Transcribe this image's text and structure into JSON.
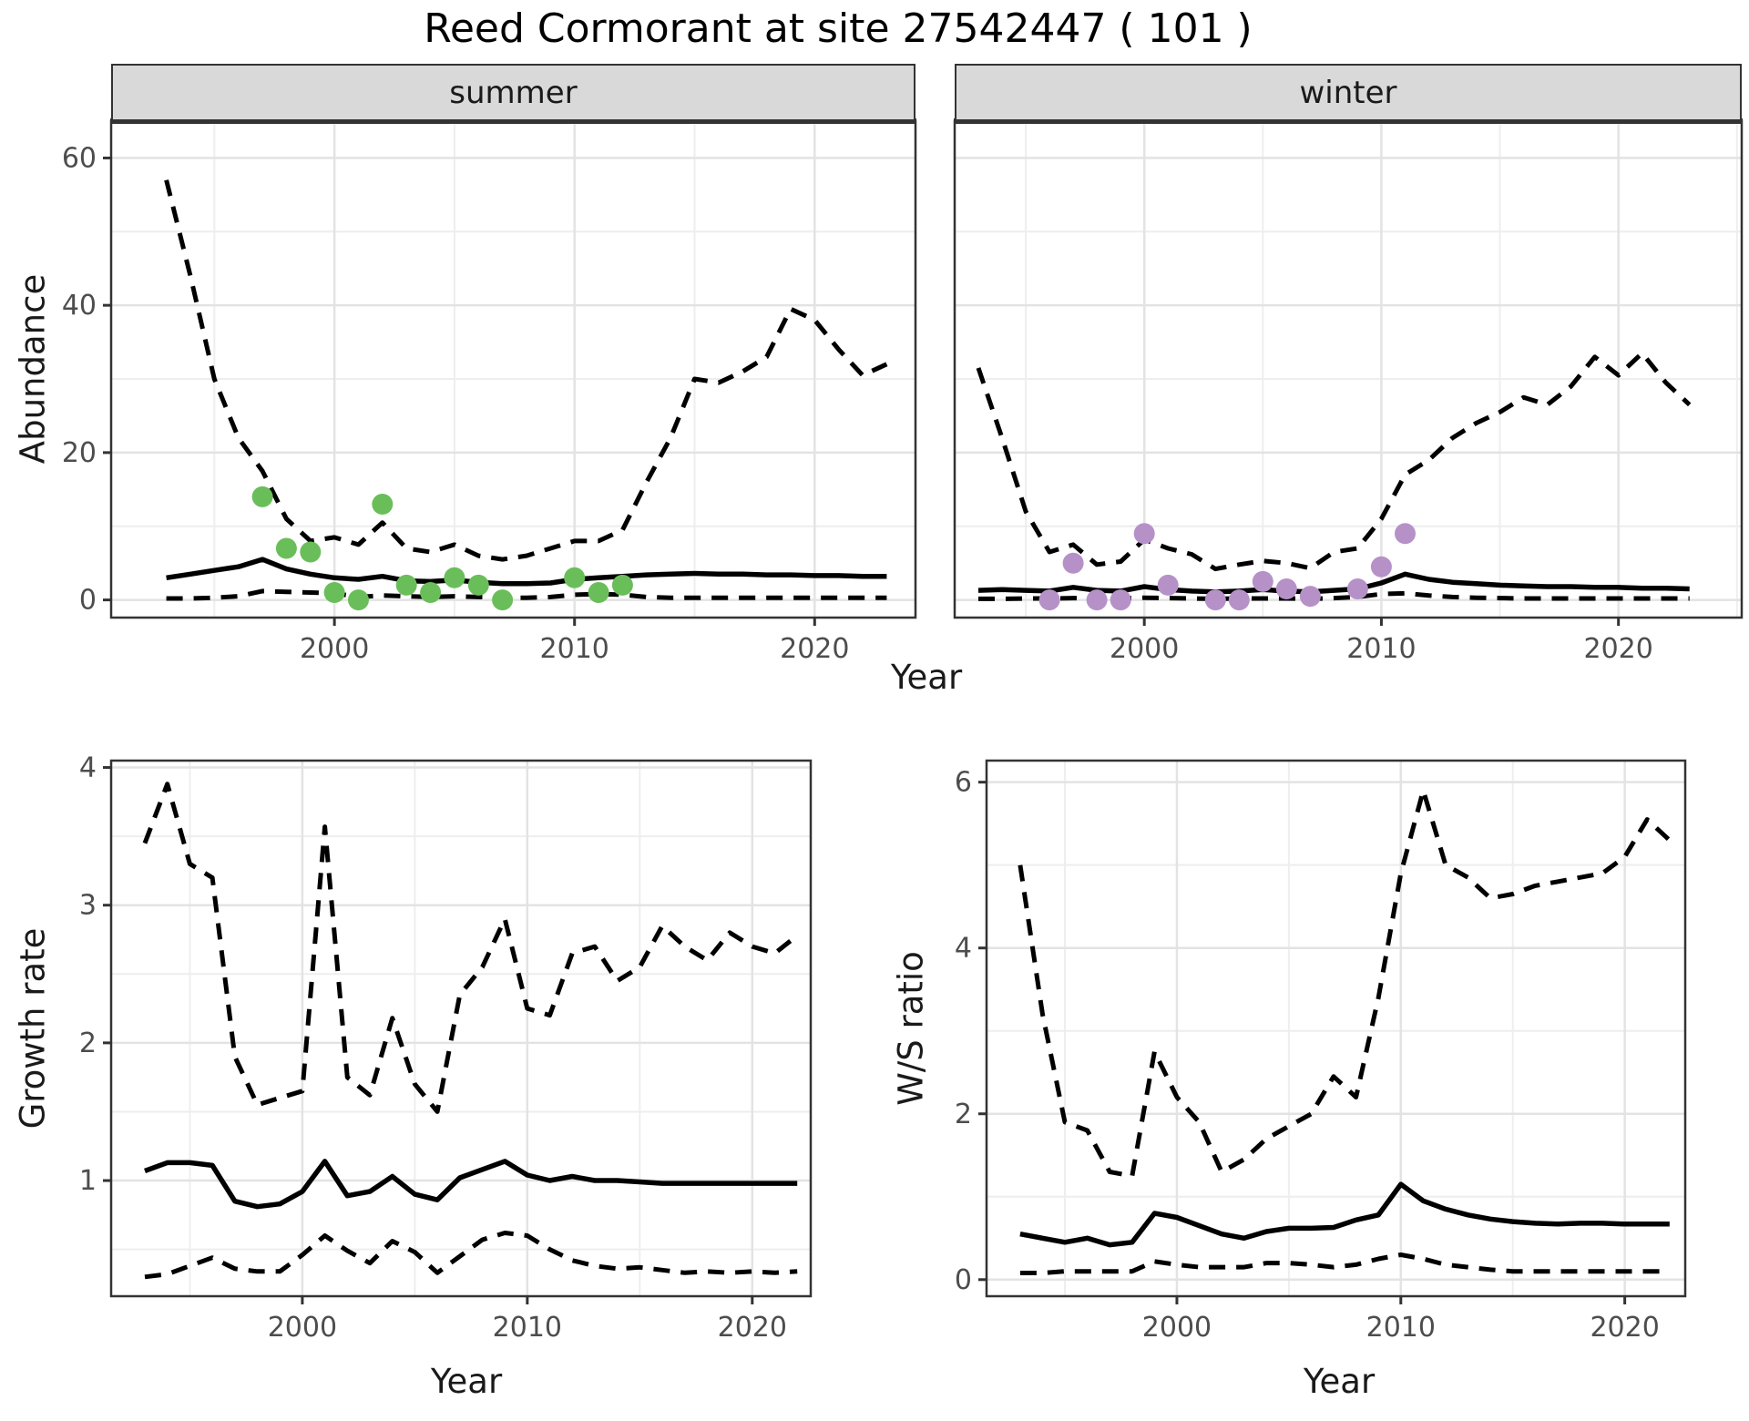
{
  "title": "Reed Cormorant at site 27542447 ( 101 )",
  "axes": {
    "top_x": "Year",
    "top_y": "Abundance",
    "bl_x": "Year",
    "bl_y": "Growth rate",
    "br_x": "Year",
    "br_y": "W/S ratio"
  },
  "colors": {
    "summer_points": "#6abe5a",
    "winter_points": "#b691c8",
    "line": "#000000",
    "strip_bg": "#d9d9d9",
    "panel_border": "#333333",
    "grid_major": "#e3e3e3",
    "grid_minor": "#eeeeee",
    "axis_text": "#4d4d4d"
  },
  "chart_data": [
    {
      "id": "abundance_summer",
      "type": "line",
      "facet_label": "summer",
      "xlabel": "Year",
      "ylabel": "Abundance",
      "xlim": [
        1990.7,
        2024.2
      ],
      "ylim": [
        -2.4,
        65
      ],
      "xticks": [
        2000,
        2010,
        2020
      ],
      "xticks_minor": [
        1995,
        2005,
        2015,
        2025
      ],
      "yticks": [
        0,
        20,
        40,
        60
      ],
      "yticks_minor": [
        10,
        30,
        50
      ],
      "x": [
        1993,
        1994,
        1995,
        1996,
        1997,
        1998,
        1999,
        2000,
        2001,
        2002,
        2003,
        2004,
        2005,
        2006,
        2007,
        2008,
        2009,
        2010,
        2011,
        2012,
        2013,
        2014,
        2015,
        2016,
        2017,
        2018,
        2019,
        2020,
        2021,
        2022,
        2023
      ],
      "series": [
        {
          "name": "upper-ci",
          "style": "dashed",
          "values": [
            57,
            44,
            30,
            22,
            17.5,
            11,
            8,
            8.5,
            7.5,
            10.5,
            7,
            6.5,
            7.5,
            6,
            5.5,
            6,
            7,
            8,
            8,
            9.5,
            16,
            22,
            30,
            29.5,
            31,
            33,
            39.5,
            38,
            34,
            30.5,
            32
          ]
        },
        {
          "name": "median",
          "style": "solid",
          "values": [
            3,
            3.5,
            4,
            4.5,
            5.5,
            4.2,
            3.5,
            3,
            2.8,
            3.2,
            2.6,
            2.5,
            2.7,
            2.4,
            2.2,
            2.2,
            2.3,
            2.8,
            3,
            3.2,
            3.4,
            3.5,
            3.6,
            3.5,
            3.5,
            3.4,
            3.4,
            3.3,
            3.3,
            3.2,
            3.2
          ]
        },
        {
          "name": "lower-ci",
          "style": "dashed",
          "values": [
            0.2,
            0.2,
            0.3,
            0.5,
            1.2,
            1.1,
            1,
            0.9,
            0.4,
            0.6,
            0.5,
            0.4,
            0.5,
            0.4,
            0.3,
            0.3,
            0.4,
            0.7,
            0.8,
            0.7,
            0.4,
            0.3,
            0.3,
            0.3,
            0.3,
            0.3,
            0.3,
            0.3,
            0.3,
            0.3,
            0.3
          ]
        }
      ],
      "points": {
        "name": "observed-counts-summer",
        "color": "#6abe5a",
        "data": [
          [
            1997,
            14
          ],
          [
            1998,
            7
          ],
          [
            1999,
            6.5
          ],
          [
            2000,
            1
          ],
          [
            2001,
            0
          ],
          [
            2002,
            13
          ],
          [
            2003,
            2
          ],
          [
            2004,
            1
          ],
          [
            2005,
            3
          ],
          [
            2006,
            2
          ],
          [
            2007,
            0
          ],
          [
            2010,
            3
          ],
          [
            2011,
            1
          ],
          [
            2012,
            2
          ]
        ]
      }
    },
    {
      "id": "abundance_winter",
      "type": "line",
      "facet_label": "winter",
      "xlabel": "Year",
      "ylabel": "Abundance",
      "xlim": [
        1992.0,
        2025.2
      ],
      "ylim": [
        -2.4,
        65
      ],
      "xticks": [
        2000,
        2010,
        2020
      ],
      "xticks_minor": [
        1995,
        2005,
        2015,
        2025
      ],
      "yticks": [
        0,
        20,
        40,
        60
      ],
      "yticks_minor": [
        10,
        30,
        50
      ],
      "x": [
        1993,
        1994,
        1995,
        1996,
        1997,
        1998,
        1999,
        2000,
        2001,
        2002,
        2003,
        2004,
        2005,
        2006,
        2007,
        2008,
        2009,
        2010,
        2011,
        2012,
        2013,
        2014,
        2015,
        2016,
        2017,
        2018,
        2019,
        2020,
        2021,
        2022,
        2023
      ],
      "series": [
        {
          "name": "upper-ci",
          "style": "dashed",
          "values": [
            31.5,
            22,
            12,
            6.5,
            7.5,
            4.8,
            5.2,
            8.2,
            7,
            6.2,
            4.2,
            4.8,
            5.3,
            5,
            4.3,
            6.5,
            7,
            11,
            17,
            19,
            22,
            24,
            25.5,
            27.5,
            26.5,
            29,
            33,
            30.5,
            33.5,
            29.5,
            26.5
          ]
        },
        {
          "name": "median",
          "style": "solid",
          "values": [
            1.3,
            1.4,
            1.3,
            1.2,
            1.7,
            1.3,
            1.2,
            1.8,
            1.4,
            1.2,
            1.1,
            1.2,
            1.4,
            1.2,
            1.1,
            1.3,
            1.5,
            2.3,
            3.5,
            2.8,
            2.4,
            2.2,
            2,
            1.9,
            1.8,
            1.8,
            1.7,
            1.7,
            1.6,
            1.6,
            1.5
          ]
        },
        {
          "name": "lower-ci",
          "style": "dashed",
          "values": [
            0.15,
            0.15,
            0.2,
            0.2,
            0.25,
            0.2,
            0.2,
            0.3,
            0.25,
            0.2,
            0.15,
            0.2,
            0.2,
            0.2,
            0.15,
            0.25,
            0.4,
            0.8,
            0.9,
            0.6,
            0.4,
            0.3,
            0.25,
            0.2,
            0.2,
            0.2,
            0.2,
            0.2,
            0.2,
            0.2,
            0.2
          ]
        }
      ],
      "points": {
        "name": "observed-counts-winter",
        "color": "#b691c8",
        "data": [
          [
            1996,
            0
          ],
          [
            1997,
            5
          ],
          [
            1998,
            0
          ],
          [
            1999,
            0
          ],
          [
            2000,
            9
          ],
          [
            2001,
            2
          ],
          [
            2003,
            0
          ],
          [
            2004,
            0
          ],
          [
            2005,
            2.5
          ],
          [
            2006,
            1.5
          ],
          [
            2007,
            0.5
          ],
          [
            2009,
            1.5
          ],
          [
            2010,
            4.5
          ],
          [
            2011,
            9
          ]
        ]
      }
    },
    {
      "id": "growth_rate",
      "type": "line",
      "facet_label": "",
      "xlabel": "Year",
      "ylabel": "Growth rate",
      "xlim": [
        1991.5,
        2022.6
      ],
      "ylim": [
        0.16,
        4.05
      ],
      "xticks": [
        2000,
        2010,
        2020
      ],
      "xticks_minor": [
        1995,
        2005,
        2015
      ],
      "yticks": [
        1,
        2,
        3,
        4
      ],
      "yticks_minor": [
        0.5,
        1.5,
        2.5,
        3.5
      ],
      "x": [
        1993,
        1994,
        1995,
        1996,
        1997,
        1998,
        1999,
        2000,
        2001,
        2002,
        2003,
        2004,
        2005,
        2006,
        2007,
        2008,
        2009,
        2010,
        2011,
        2012,
        2013,
        2014,
        2015,
        2016,
        2017,
        2018,
        2019,
        2020,
        2021,
        2022
      ],
      "series": [
        {
          "name": "upper-ci",
          "style": "dashed",
          "values": [
            3.45,
            3.88,
            3.3,
            3.2,
            1.9,
            1.55,
            1.6,
            1.65,
            3.57,
            1.75,
            1.62,
            2.18,
            1.7,
            1.5,
            2.35,
            2.55,
            2.9,
            2.25,
            2.2,
            2.65,
            2.7,
            2.45,
            2.55,
            2.85,
            2.7,
            2.6,
            2.8,
            2.7,
            2.65,
            2.78
          ]
        },
        {
          "name": "median",
          "style": "solid",
          "values": [
            1.07,
            1.13,
            1.13,
            1.11,
            0.85,
            0.81,
            0.83,
            0.92,
            1.14,
            0.89,
            0.92,
            1.03,
            0.9,
            0.86,
            1.02,
            1.08,
            1.14,
            1.04,
            1,
            1.03,
            1,
            1,
            0.99,
            0.98,
            0.98,
            0.98,
            0.98,
            0.98,
            0.98,
            0.98
          ]
        },
        {
          "name": "lower-ci",
          "style": "dashed",
          "values": [
            0.3,
            0.32,
            0.38,
            0.44,
            0.36,
            0.34,
            0.34,
            0.46,
            0.6,
            0.49,
            0.4,
            0.56,
            0.48,
            0.33,
            0.45,
            0.57,
            0.62,
            0.6,
            0.5,
            0.42,
            0.38,
            0.36,
            0.37,
            0.35,
            0.33,
            0.34,
            0.33,
            0.34,
            0.33,
            0.34
          ]
        }
      ],
      "points": null
    },
    {
      "id": "ws_ratio",
      "type": "line",
      "facet_label": "",
      "xlabel": "Year",
      "ylabel": "W/S ratio",
      "xlim": [
        1991.5,
        2022.7
      ],
      "ylim": [
        -0.2,
        6.26
      ],
      "xticks": [
        2000,
        2010,
        2020
      ],
      "xticks_minor": [
        1995,
        2005,
        2015
      ],
      "yticks": [
        0,
        2,
        4,
        6
      ],
      "yticks_minor": [
        1,
        3,
        5
      ],
      "x": [
        1993,
        1994,
        1995,
        1996,
        1997,
        1998,
        1999,
        2000,
        2001,
        2002,
        2003,
        2004,
        2005,
        2006,
        2007,
        2008,
        2009,
        2010,
        2011,
        2012,
        2013,
        2014,
        2015,
        2016,
        2017,
        2018,
        2019,
        2020,
        2021,
        2022
      ],
      "series": [
        {
          "name": "upper-ci",
          "style": "dashed",
          "values": [
            5,
            3.2,
            1.9,
            1.8,
            1.3,
            1.25,
            2.75,
            2.2,
            1.9,
            1.3,
            1.45,
            1.7,
            1.85,
            2,
            2.45,
            2.2,
            3.4,
            4.9,
            5.9,
            5,
            4.85,
            4.6,
            4.65,
            4.75,
            4.8,
            4.85,
            4.9,
            5.1,
            5.55,
            5.3
          ]
        },
        {
          "name": "median",
          "style": "solid",
          "values": [
            0.55,
            0.5,
            0.45,
            0.5,
            0.42,
            0.45,
            0.8,
            0.75,
            0.65,
            0.55,
            0.5,
            0.58,
            0.62,
            0.62,
            0.63,
            0.72,
            0.78,
            1.15,
            0.95,
            0.85,
            0.78,
            0.73,
            0.7,
            0.68,
            0.67,
            0.68,
            0.68,
            0.67,
            0.67,
            0.67
          ]
        },
        {
          "name": "lower-ci",
          "style": "dashed",
          "values": [
            0.08,
            0.08,
            0.1,
            0.1,
            0.1,
            0.1,
            0.22,
            0.18,
            0.15,
            0.15,
            0.15,
            0.2,
            0.2,
            0.18,
            0.15,
            0.18,
            0.25,
            0.3,
            0.25,
            0.18,
            0.15,
            0.12,
            0.1,
            0.1,
            0.1,
            0.1,
            0.1,
            0.1,
            0.1,
            0.1
          ]
        }
      ],
      "points": null
    }
  ]
}
